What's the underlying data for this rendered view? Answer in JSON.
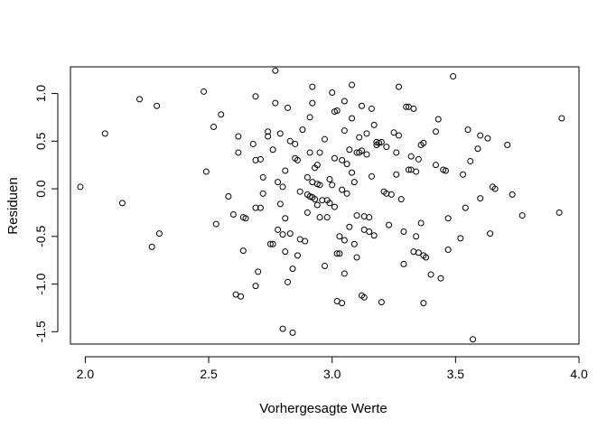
{
  "chart_data": {
    "type": "scatter",
    "title": "",
    "xlabel": "Vorhergesagte Werte",
    "ylabel": "Residuen",
    "xlim": [
      1.94,
      4.0
    ],
    "ylim": [
      -1.63,
      1.28
    ],
    "xticks": [
      2.0,
      2.5,
      3.0,
      3.5,
      4.0
    ],
    "xtick_labels": [
      "2.0",
      "2.5",
      "3.0",
      "3.5",
      "4.0"
    ],
    "yticks": [
      -1.5,
      -1.0,
      -0.5,
      0.0,
      0.5,
      1.0
    ],
    "ytick_labels": [
      "-1.5",
      "-1.0",
      "-0.5",
      "0.0",
      "0.5",
      "1.0"
    ],
    "grid": false,
    "marker": "open-circle",
    "points": [
      [
        1.98,
        0.02
      ],
      [
        2.08,
        0.58
      ],
      [
        2.15,
        -0.15
      ],
      [
        2.22,
        0.94
      ],
      [
        2.27,
        -0.61
      ],
      [
        2.29,
        0.87
      ],
      [
        2.3,
        -0.47
      ],
      [
        2.48,
        1.02
      ],
      [
        2.49,
        0.18
      ],
      [
        2.52,
        0.65
      ],
      [
        2.53,
        -0.37
      ],
      [
        2.55,
        0.78
      ],
      [
        2.58,
        -0.08
      ],
      [
        2.6,
        -0.27
      ],
      [
        2.61,
        -1.11
      ],
      [
        2.62,
        0.55
      ],
      [
        2.62,
        0.38
      ],
      [
        2.63,
        -1.13
      ],
      [
        2.64,
        -0.3
      ],
      [
        2.64,
        -0.65
      ],
      [
        2.65,
        -0.31
      ],
      [
        2.68,
        0.47
      ],
      [
        2.69,
        0.97
      ],
      [
        2.69,
        0.3
      ],
      [
        2.69,
        -0.2
      ],
      [
        2.69,
        -1.02
      ],
      [
        2.7,
        -0.87
      ],
      [
        2.71,
        0.31
      ],
      [
        2.71,
        -0.2
      ],
      [
        2.72,
        0.12
      ],
      [
        2.72,
        -0.05
      ],
      [
        2.74,
        0.55
      ],
      [
        2.74,
        0.6
      ],
      [
        2.75,
        -0.58
      ],
      [
        2.76,
        -0.58
      ],
      [
        2.76,
        0.41
      ],
      [
        2.77,
        0.9
      ],
      [
        2.77,
        1.24
      ],
      [
        2.78,
        0.07
      ],
      [
        2.78,
        -0.43
      ],
      [
        2.79,
        0.58
      ],
      [
        2.79,
        -0.16
      ],
      [
        2.8,
        -1.47
      ],
      [
        2.8,
        -0.48
      ],
      [
        2.8,
        0.02
      ],
      [
        2.81,
        0.19
      ],
      [
        2.81,
        -0.31
      ],
      [
        2.81,
        -0.66
      ],
      [
        2.82,
        0.85
      ],
      [
        2.82,
        -0.98
      ],
      [
        2.83,
        0.5
      ],
      [
        2.83,
        -0.47
      ],
      [
        2.84,
        -1.51
      ],
      [
        2.84,
        -0.84
      ],
      [
        2.85,
        0.47
      ],
      [
        2.85,
        0.32
      ],
      [
        2.86,
        0.3
      ],
      [
        2.86,
        -0.7
      ],
      [
        2.87,
        -0.03
      ],
      [
        2.87,
        -0.53
      ],
      [
        2.88,
        0.62
      ],
      [
        2.89,
        -0.55
      ],
      [
        2.9,
        -0.06
      ],
      [
        2.9,
        0.12
      ],
      [
        2.9,
        -0.25
      ],
      [
        2.91,
        0.75
      ],
      [
        2.91,
        0.38
      ],
      [
        2.91,
        -0.08
      ],
      [
        2.92,
        0.07
      ],
      [
        2.92,
        -0.09
      ],
      [
        2.92,
        0.9
      ],
      [
        2.92,
        1.07
      ],
      [
        2.93,
        0.22
      ],
      [
        2.93,
        -0.11
      ],
      [
        2.94,
        0.05
      ],
      [
        2.94,
        -0.17
      ],
      [
        2.94,
        0.25
      ],
      [
        2.95,
        0.38
      ],
      [
        2.95,
        0.04
      ],
      [
        2.95,
        -0.3
      ],
      [
        2.96,
        -0.12
      ],
      [
        2.97,
        -0.81
      ],
      [
        2.97,
        0.52
      ],
      [
        2.98,
        -0.3
      ],
      [
        2.98,
        -0.12
      ],
      [
        2.99,
        0.1
      ],
      [
        2.99,
        -0.15
      ],
      [
        3.0,
        1.01
      ],
      [
        3.0,
        0.04
      ],
      [
        3.01,
        0.32
      ],
      [
        3.01,
        -0.19
      ],
      [
        3.01,
        0.81
      ],
      [
        3.02,
        -1.18
      ],
      [
        3.02,
        -0.68
      ],
      [
        3.02,
        0.82
      ],
      [
        3.03,
        -0.5
      ],
      [
        3.03,
        -0.68
      ],
      [
        3.04,
        -1.2
      ],
      [
        3.04,
        0.3
      ],
      [
        3.04,
        -0.01
      ],
      [
        3.05,
        0.92
      ],
      [
        3.05,
        -0.54
      ],
      [
        3.05,
        -0.89
      ],
      [
        3.05,
        0.61
      ],
      [
        3.06,
        0.26
      ],
      [
        3.06,
        -0.05
      ],
      [
        3.07,
        -0.4
      ],
      [
        3.07,
        0.41
      ],
      [
        3.08,
        1.09
      ],
      [
        3.08,
        0.17
      ],
      [
        3.08,
        0.74
      ],
      [
        3.09,
        0.07
      ],
      [
        3.09,
        -0.58
      ],
      [
        3.1,
        -0.28
      ],
      [
        3.1,
        -0.72
      ],
      [
        3.1,
        0.38
      ],
      [
        3.11,
        0.54
      ],
      [
        3.11,
        0.38
      ],
      [
        3.12,
        0.87
      ],
      [
        3.12,
        -1.12
      ],
      [
        3.12,
        0.4
      ],
      [
        3.13,
        -0.29
      ],
      [
        3.13,
        -0.43
      ],
      [
        3.13,
        -1.14
      ],
      [
        3.14,
        0.36
      ],
      [
        3.14,
        0.58
      ],
      [
        3.15,
        -0.3
      ],
      [
        3.15,
        -0.45
      ],
      [
        3.16,
        0.84
      ],
      [
        3.16,
        0.13
      ],
      [
        3.17,
        0.67
      ],
      [
        3.17,
        -0.49
      ],
      [
        3.18,
        0.49
      ],
      [
        3.18,
        0.46
      ],
      [
        3.19,
        0.48
      ],
      [
        3.2,
        0.49
      ],
      [
        3.2,
        -1.19
      ],
      [
        3.21,
        -0.03
      ],
      [
        3.22,
        0.44
      ],
      [
        3.22,
        -0.05
      ],
      [
        3.23,
        -0.38
      ],
      [
        3.24,
        -0.06
      ],
      [
        3.25,
        0.59
      ],
      [
        3.26,
        0.38
      ],
      [
        3.26,
        0.15
      ],
      [
        3.27,
        0.56
      ],
      [
        3.27,
        1.07
      ],
      [
        3.28,
        -0.11
      ],
      [
        3.29,
        -0.45
      ],
      [
        3.29,
        -0.79
      ],
      [
        3.3,
        0.86
      ],
      [
        3.31,
        0.86
      ],
      [
        3.31,
        0.2
      ],
      [
        3.32,
        0.2
      ],
      [
        3.32,
        0.34
      ],
      [
        3.33,
        -0.66
      ],
      [
        3.33,
        0.84
      ],
      [
        3.34,
        0.18
      ],
      [
        3.34,
        -0.5
      ],
      [
        3.35,
        0.31
      ],
      [
        3.35,
        -0.67
      ],
      [
        3.36,
        -0.36
      ],
      [
        3.36,
        0.46
      ],
      [
        3.37,
        0.48
      ],
      [
        3.37,
        -0.7
      ],
      [
        3.37,
        -1.2
      ],
      [
        3.38,
        -0.72
      ],
      [
        3.4,
        -0.9
      ],
      [
        3.42,
        0.6
      ],
      [
        3.42,
        0.25
      ],
      [
        3.43,
        0.73
      ],
      [
        3.44,
        -0.94
      ],
      [
        3.45,
        0.2
      ],
      [
        3.46,
        0.19
      ],
      [
        3.47,
        -0.31
      ],
      [
        3.47,
        -0.64
      ],
      [
        3.49,
        1.18
      ],
      [
        3.52,
        -0.52
      ],
      [
        3.53,
        0.15
      ],
      [
        3.54,
        -0.2
      ],
      [
        3.55,
        0.62
      ],
      [
        3.56,
        0.29
      ],
      [
        3.57,
        -1.58
      ],
      [
        3.59,
        0.42
      ],
      [
        3.6,
        0.56
      ],
      [
        3.6,
        -0.1
      ],
      [
        3.63,
        0.53
      ],
      [
        3.64,
        -0.47
      ],
      [
        3.65,
        0.02
      ],
      [
        3.66,
        0.0
      ],
      [
        3.71,
        0.46
      ],
      [
        3.73,
        -0.06
      ],
      [
        3.77,
        -0.28
      ],
      [
        3.92,
        -0.25
      ],
      [
        3.93,
        0.74
      ]
    ]
  }
}
